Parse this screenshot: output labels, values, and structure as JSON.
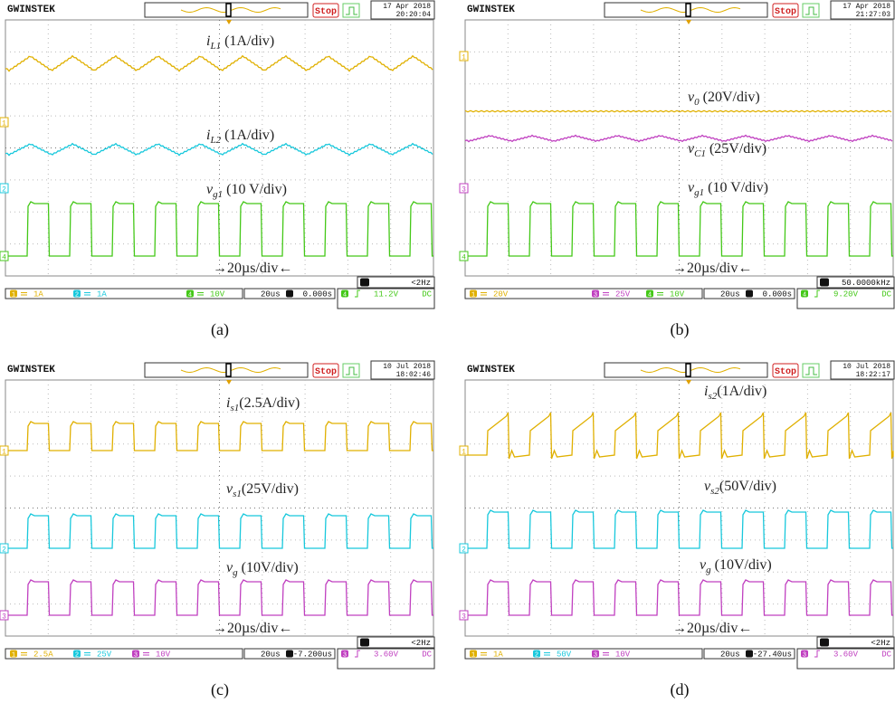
{
  "panels": [
    {
      "caption": "(a)",
      "brand": "GWINSTEK",
      "state": "Stop",
      "date": "17 Apr 2018",
      "time": "20:20:04",
      "labels": [
        {
          "var": "i",
          "sub": "L1",
          "scale": " (1A/div)"
        },
        {
          "var": "i",
          "sub": "L2",
          "scale": " (1A/div)"
        },
        {
          "var": "v",
          "sub": "g1",
          "scale": "  (10 V/div)"
        }
      ],
      "timebase_label": "→20µs/div←",
      "freq": "<2Hz",
      "channels": [
        {
          "label": "1",
          "scale": "1A",
          "color": "#e0b000"
        },
        {
          "label": "2",
          "scale": "1A",
          "color": "#18c8dc"
        },
        {
          "label": "4",
          "scale": "10V",
          "color": "#44c818"
        }
      ],
      "horizontal": "20us",
      "position": "0.000s",
      "trigger_source": "4",
      "trigger_level": "11.2V",
      "coupling": "DC"
    },
    {
      "caption": "(b)",
      "brand": "GWINSTEK",
      "state": "Stop",
      "date": "17 Apr 2018",
      "time": "21:27:03",
      "labels": [
        {
          "var": "v",
          "sub": "0",
          "scale": " (20V/div)"
        },
        {
          "var": "v",
          "sub": "C1",
          "scale": " (25V/div)"
        },
        {
          "var": "v",
          "sub": "g1",
          "scale": "  (10 V/div)"
        }
      ],
      "timebase_label": "→20µs/div←",
      "freq": "50.0000kHz",
      "channels": [
        {
          "label": "1",
          "scale": "20V",
          "color": "#e0b000"
        },
        {
          "label": "3",
          "scale": "25V",
          "color": "#c040c0"
        },
        {
          "label": "4",
          "scale": "10V",
          "color": "#44c818"
        }
      ],
      "horizontal": "20us",
      "position": "0.000s",
      "trigger_source": "4",
      "trigger_level": "9.20V",
      "coupling": "DC"
    },
    {
      "caption": "(c)",
      "brand": "GWINSTEK",
      "state": "Stop",
      "date": "10 Jul 2018",
      "time": "18:02:46",
      "labels": [
        {
          "var": "i",
          "sub": "s1",
          "scale": "(2.5A/div)"
        },
        {
          "var": "v",
          "sub": "s1",
          "scale": "(25V/div)"
        },
        {
          "var": "v",
          "sub": "g",
          "scale": " (10V/div)"
        }
      ],
      "timebase_label": "→20µs/div←",
      "freq": "<2Hz",
      "channels": [
        {
          "label": "1",
          "scale": "2.5A",
          "color": "#e0b000"
        },
        {
          "label": "2",
          "scale": "25V",
          "color": "#18c8dc"
        },
        {
          "label": "3",
          "scale": "10V",
          "color": "#c040c0"
        }
      ],
      "horizontal": "20us",
      "position": "-7.200us",
      "trigger_source": "3",
      "trigger_level": "3.60V",
      "coupling": "DC"
    },
    {
      "caption": "(d)",
      "brand": "GWINSTEK",
      "state": "Stop",
      "date": "10 Jul 2018",
      "time": "18:22:17",
      "labels": [
        {
          "var": "i",
          "sub": "s2",
          "scale": "(1A/div)"
        },
        {
          "var": "v",
          "sub": "s2",
          "scale": "(50V/div)"
        },
        {
          "var": "v",
          "sub": "g",
          "scale": " (10V/div)"
        }
      ],
      "timebase_label": "→20µs/div←",
      "freq": "<2Hz",
      "channels": [
        {
          "label": "1",
          "scale": "1A",
          "color": "#e0b000"
        },
        {
          "label": "2",
          "scale": "50V",
          "color": "#18c8dc"
        },
        {
          "label": "3",
          "scale": "10V",
          "color": "#c040c0"
        }
      ],
      "horizontal": "20us",
      "position": "-27.40us",
      "trigger_source": "3",
      "trigger_level": "3.60V",
      "coupling": "DC"
    }
  ]
}
